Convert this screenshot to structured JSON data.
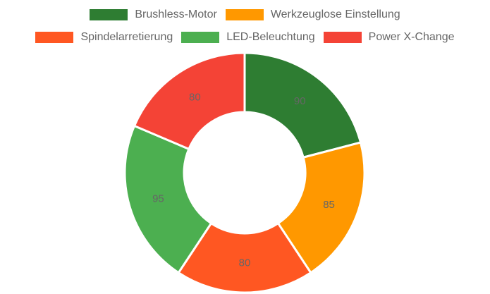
{
  "chart_data": {
    "type": "pie",
    "variant": "doughnut",
    "categories": [
      "Brushless-Motor",
      "Werkzeuglose Einstellung",
      "Spindelarretierung",
      "LED-Beleuchtung",
      "Power X-Change"
    ],
    "values": [
      90,
      85,
      80,
      95,
      80
    ],
    "colors": [
      "#2e7d32",
      "#ff9800",
      "#ff5722",
      "#4caf50",
      "#f44336"
    ],
    "legend_position": "top",
    "data_labels": true,
    "title": ""
  }
}
